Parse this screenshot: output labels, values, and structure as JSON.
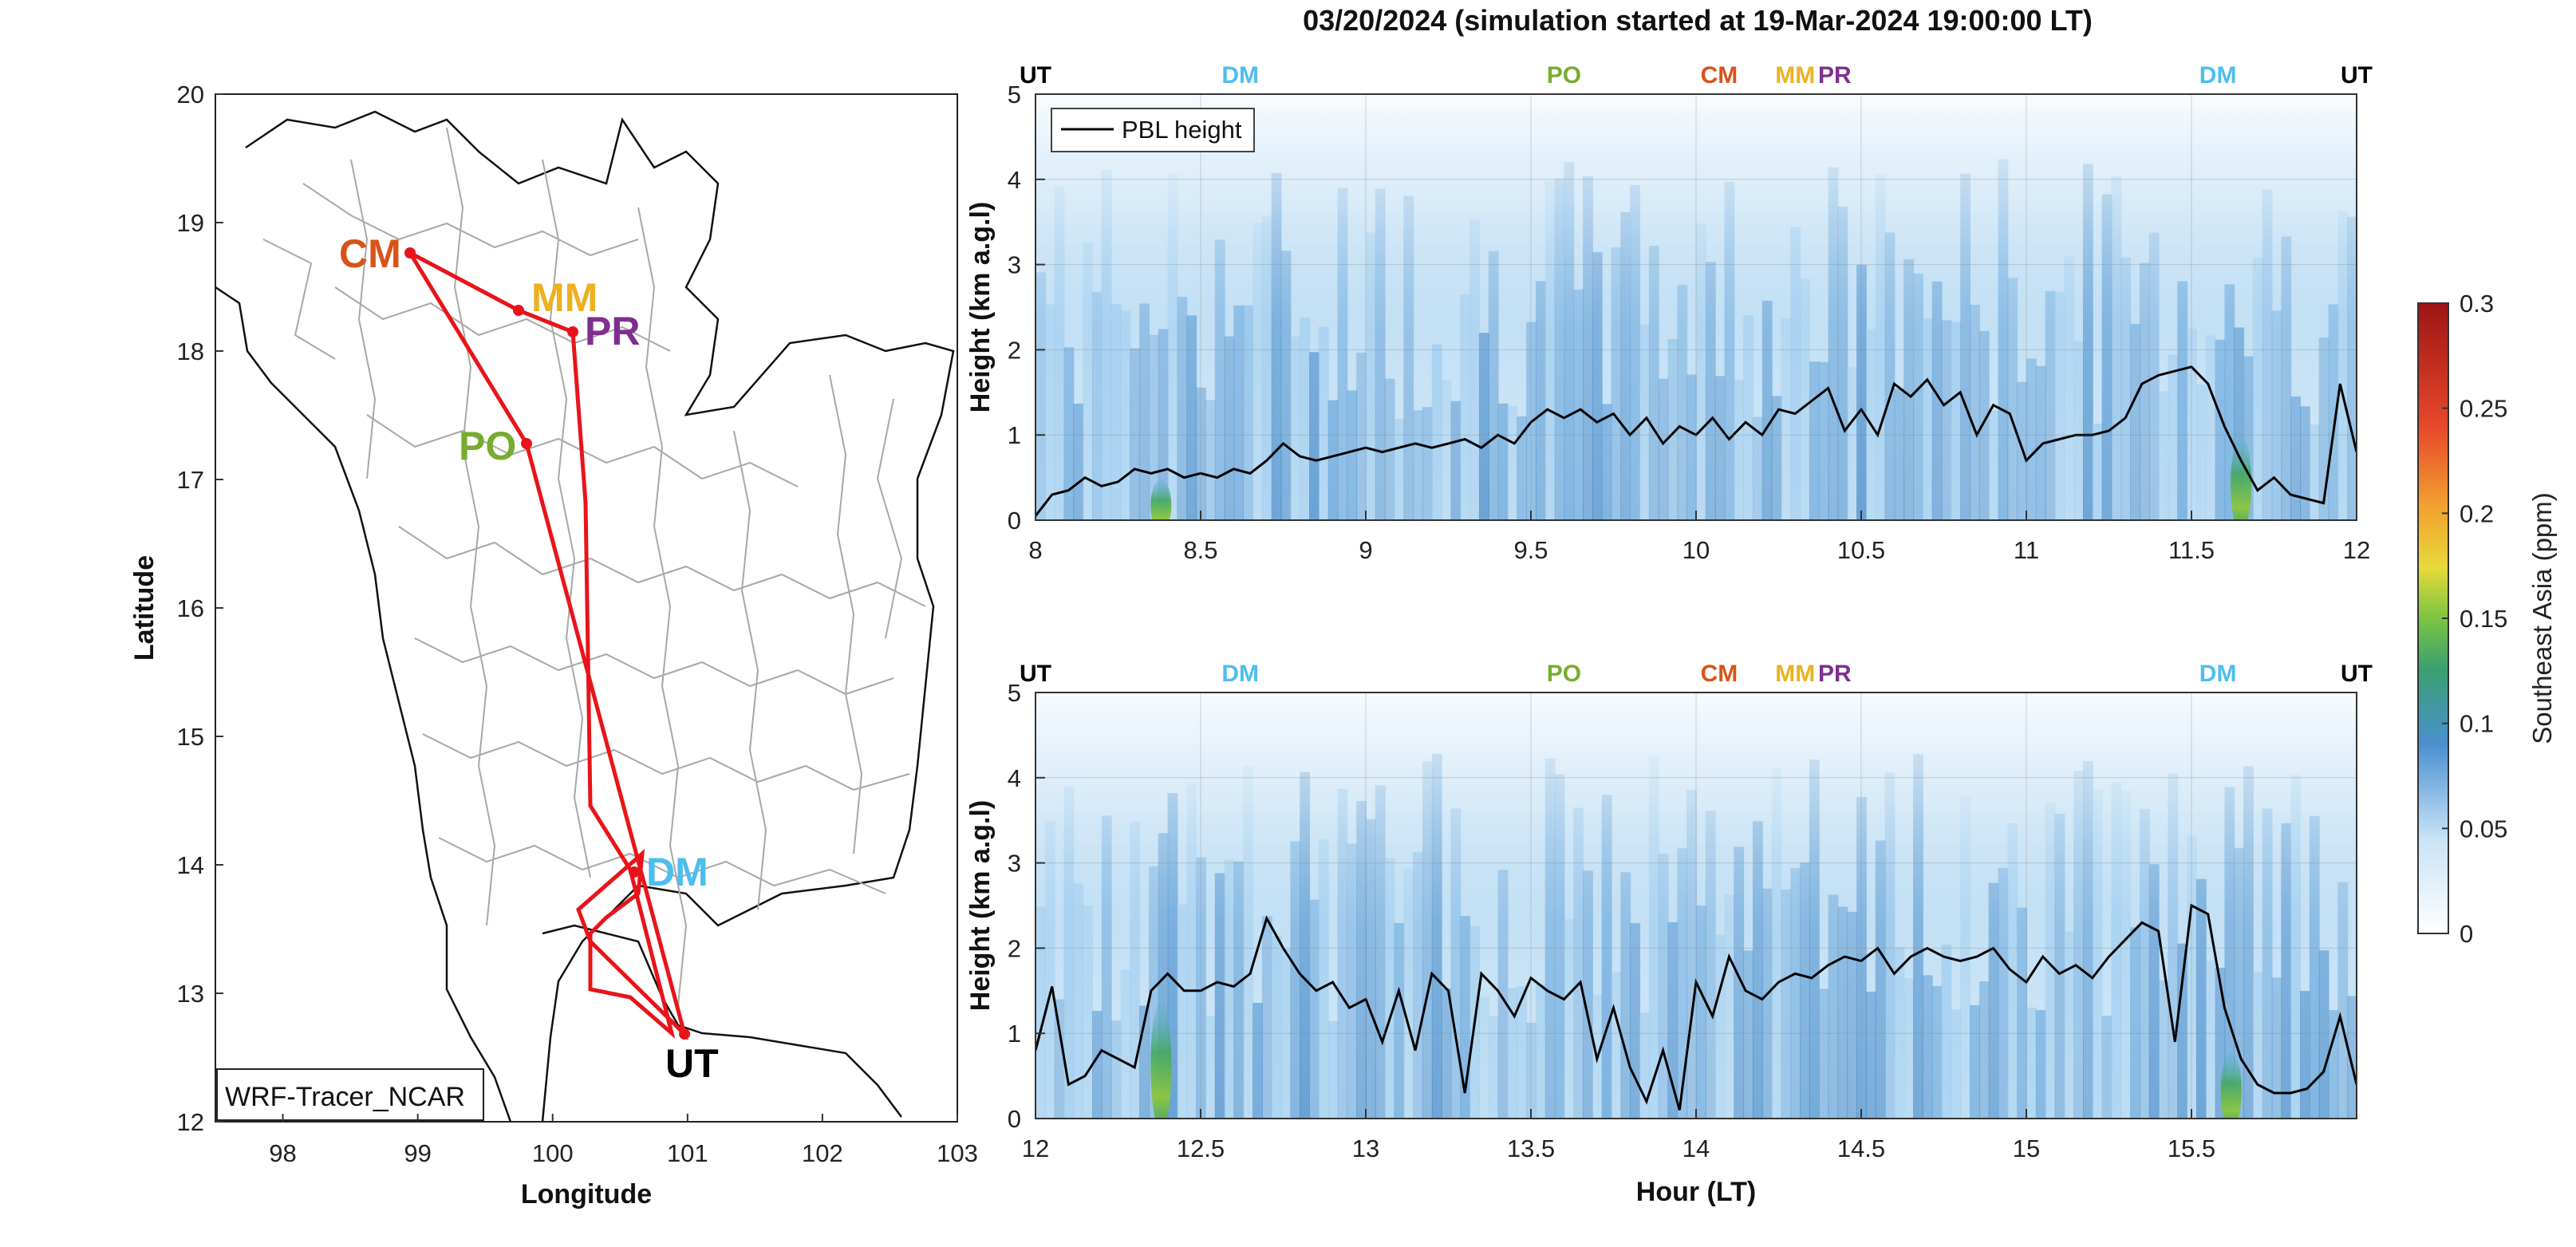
{
  "title": "03/20/2024 (simulation started at 19-Mar-2024 19:00:00 LT)",
  "map": {
    "xlabel": "Longitude",
    "ylabel": "Latitude",
    "xticks": [
      "98",
      "99",
      "100",
      "101",
      "102",
      "103"
    ],
    "yticks": [
      "12",
      "13",
      "14",
      "15",
      "16",
      "17",
      "18",
      "19",
      "20"
    ],
    "model_label": "WRF-Tracer_NCAR",
    "sites": [
      {
        "code": "CM",
        "lon": 98.97,
        "lat": 18.78,
        "color": "#d95319"
      },
      {
        "code": "MM",
        "lon": 99.82,
        "lat": 18.33,
        "color": "#edb120"
      },
      {
        "code": "PR",
        "lon": 100.22,
        "lat": 18.15,
        "color": "#7e2f8e"
      },
      {
        "code": "PO",
        "lon": 99.8,
        "lat": 17.27,
        "color": "#77ac30"
      },
      {
        "code": "DM",
        "lon": 100.6,
        "lat": 13.93,
        "color": "#4dbeee"
      },
      {
        "code": "UT",
        "lon": 101.0,
        "lat": 12.68,
        "color": "#000000"
      }
    ],
    "route_color": "#e8141a"
  },
  "chart_data": [
    {
      "type": "heatmap",
      "xlim": [
        8,
        12
      ],
      "ylim": [
        0,
        5
      ],
      "xticks": [
        "8",
        "8.5",
        "9",
        "9.5",
        "10",
        "10.5",
        "11",
        "11.5",
        "12"
      ],
      "yticks": [
        "0",
        "1",
        "2",
        "3",
        "4",
        "5"
      ],
      "xlabel": "",
      "ylabel": "Height (km a.g.l)",
      "legend": "PBL height",
      "legend_position": "top-left",
      "site_markers": [
        {
          "code": "UT",
          "x": 8.0,
          "color": "#000000"
        },
        {
          "code": "DM",
          "x": 8.62,
          "color": "#4dbeee"
        },
        {
          "code": "PO",
          "x": 9.6,
          "color": "#77ac30"
        },
        {
          "code": "CM",
          "x": 10.07,
          "color": "#d95319"
        },
        {
          "code": "MM",
          "x": 10.3,
          "color": "#edb120"
        },
        {
          "code": "PR",
          "x": 10.42,
          "color": "#7e2f8e"
        },
        {
          "code": "DM",
          "x": 11.58,
          "color": "#4dbeee"
        },
        {
          "code": "UT",
          "x": 12.0,
          "color": "#000000"
        }
      ],
      "pbl_height": {
        "x": [
          8.0,
          8.05,
          8.1,
          8.15,
          8.2,
          8.25,
          8.3,
          8.35,
          8.4,
          8.45,
          8.5,
          8.55,
          8.6,
          8.65,
          8.7,
          8.75,
          8.8,
          8.85,
          8.9,
          8.95,
          9.0,
          9.05,
          9.1,
          9.15,
          9.2,
          9.25,
          9.3,
          9.35,
          9.4,
          9.45,
          9.5,
          9.55,
          9.6,
          9.65,
          9.7,
          9.75,
          9.8,
          9.85,
          9.9,
          9.95,
          10.0,
          10.05,
          10.1,
          10.15,
          10.2,
          10.25,
          10.3,
          10.35,
          10.4,
          10.45,
          10.5,
          10.55,
          10.6,
          10.65,
          10.7,
          10.75,
          10.8,
          10.85,
          10.9,
          10.95,
          11.0,
          11.05,
          11.1,
          11.15,
          11.2,
          11.25,
          11.3,
          11.35,
          11.4,
          11.45,
          11.5,
          11.55,
          11.6,
          11.65,
          11.7,
          11.75,
          11.8,
          11.85,
          11.9,
          11.95,
          12.0
        ],
        "y": [
          0.05,
          0.3,
          0.35,
          0.5,
          0.4,
          0.45,
          0.6,
          0.55,
          0.6,
          0.5,
          0.55,
          0.5,
          0.6,
          0.55,
          0.7,
          0.9,
          0.75,
          0.7,
          0.75,
          0.8,
          0.85,
          0.8,
          0.85,
          0.9,
          0.85,
          0.9,
          0.95,
          0.85,
          1.0,
          0.9,
          1.15,
          1.3,
          1.2,
          1.3,
          1.15,
          1.25,
          1.0,
          1.2,
          0.9,
          1.1,
          1.0,
          1.2,
          0.95,
          1.15,
          1.0,
          1.3,
          1.25,
          1.4,
          1.55,
          1.05,
          1.3,
          1.0,
          1.6,
          1.45,
          1.65,
          1.35,
          1.5,
          1.0,
          1.35,
          1.25,
          0.7,
          0.9,
          0.95,
          1.0,
          1.0,
          1.05,
          1.2,
          1.6,
          1.7,
          1.75,
          1.8,
          1.6,
          1.1,
          0.7,
          0.35,
          0.5,
          0.3,
          0.25,
          0.2,
          1.6,
          0.8
        ]
      },
      "tracer_hotspots": [
        {
          "x": 8.38,
          "height_top": 0.5,
          "value": 0.14
        },
        {
          "x": 11.65,
          "height_top": 1.0,
          "value": 0.15
        }
      ]
    },
    {
      "type": "heatmap",
      "xlim": [
        12,
        16
      ],
      "ylim": [
        0,
        5
      ],
      "xticks": [
        "12",
        "12.5",
        "13",
        "13.5",
        "14",
        "14.5",
        "15",
        "15.5"
      ],
      "yticks": [
        "0",
        "1",
        "2",
        "3",
        "4",
        "5"
      ],
      "xlabel": "Hour (LT)",
      "ylabel": "Height (km a.g.l)",
      "site_markers": [
        {
          "code": "UT",
          "x": 12.0,
          "color": "#000000"
        },
        {
          "code": "DM",
          "x": 12.62,
          "color": "#4dbeee"
        },
        {
          "code": "PO",
          "x": 13.6,
          "color": "#77ac30"
        },
        {
          "code": "CM",
          "x": 14.07,
          "color": "#d95319"
        },
        {
          "code": "MM",
          "x": 14.3,
          "color": "#edb120"
        },
        {
          "code": "PR",
          "x": 14.42,
          "color": "#7e2f8e"
        },
        {
          "code": "DM",
          "x": 15.58,
          "color": "#4dbeee"
        },
        {
          "code": "UT",
          "x": 16.0,
          "color": "#000000"
        }
      ],
      "pbl_height": {
        "x": [
          12.0,
          12.05,
          12.1,
          12.15,
          12.2,
          12.25,
          12.3,
          12.35,
          12.4,
          12.45,
          12.5,
          12.55,
          12.6,
          12.65,
          12.7,
          12.75,
          12.8,
          12.85,
          12.9,
          12.95,
          13.0,
          13.05,
          13.1,
          13.15,
          13.2,
          13.25,
          13.3,
          13.35,
          13.4,
          13.45,
          13.5,
          13.55,
          13.6,
          13.65,
          13.7,
          13.75,
          13.8,
          13.85,
          13.9,
          13.95,
          14.0,
          14.05,
          14.1,
          14.15,
          14.2,
          14.25,
          14.3,
          14.35,
          14.4,
          14.45,
          14.5,
          14.55,
          14.6,
          14.65,
          14.7,
          14.75,
          14.8,
          14.85,
          14.9,
          14.95,
          15.0,
          15.05,
          15.1,
          15.15,
          15.2,
          15.25,
          15.3,
          15.35,
          15.4,
          15.45,
          15.5,
          15.55,
          15.6,
          15.65,
          15.7,
          15.75,
          15.8,
          15.85,
          15.9,
          15.95,
          16.0
        ],
        "y": [
          0.8,
          1.55,
          0.4,
          0.5,
          0.8,
          0.7,
          0.6,
          1.5,
          1.7,
          1.5,
          1.5,
          1.6,
          1.55,
          1.7,
          2.35,
          2.0,
          1.7,
          1.5,
          1.6,
          1.3,
          1.4,
          0.9,
          1.5,
          0.8,
          1.7,
          1.5,
          0.3,
          1.7,
          1.5,
          1.2,
          1.65,
          1.5,
          1.4,
          1.6,
          0.7,
          1.3,
          0.6,
          0.2,
          0.8,
          0.1,
          1.6,
          1.2,
          1.9,
          1.5,
          1.4,
          1.6,
          1.7,
          1.65,
          1.8,
          1.9,
          1.85,
          2.0,
          1.7,
          1.9,
          2.0,
          1.9,
          1.85,
          1.9,
          2.0,
          1.75,
          1.6,
          1.9,
          1.7,
          1.8,
          1.65,
          1.9,
          2.1,
          2.3,
          2.2,
          0.9,
          2.5,
          2.4,
          1.3,
          0.7,
          0.4,
          0.3,
          0.3,
          0.35,
          0.55,
          1.2,
          0.4
        ]
      },
      "tracer_hotspots": [
        {
          "x": 12.38,
          "height_top": 1.4,
          "value": 0.13
        },
        {
          "x": 15.62,
          "height_top": 0.8,
          "value": 0.12
        }
      ]
    }
  ],
  "colorbar": {
    "label": "Southeast Asia (ppm)",
    "ticks": [
      "0",
      "0.05",
      "0.1",
      "0.15",
      "0.2",
      "0.25",
      "0.3"
    ],
    "range": [
      0,
      0.3
    ]
  }
}
